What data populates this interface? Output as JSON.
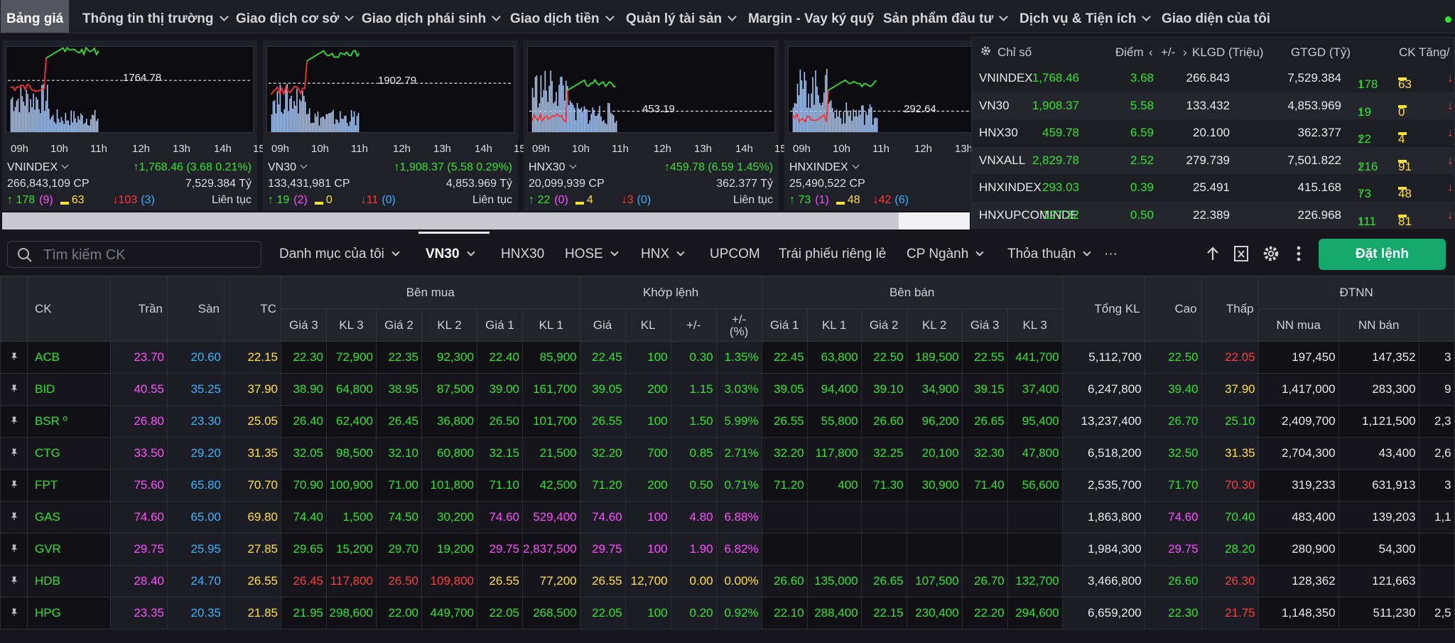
{
  "nav": {
    "items": [
      {
        "label": "Bảng giá",
        "active": true,
        "dropdown": false
      },
      {
        "label": "Thông tin thị trường",
        "dropdown": true
      },
      {
        "label": "Giao dịch cơ sở",
        "dropdown": true
      },
      {
        "label": "Giao dịch phái sinh",
        "dropdown": true
      },
      {
        "label": "Giao dịch tiền",
        "dropdown": true
      },
      {
        "label": "Quản lý tài sản",
        "dropdown": true
      },
      {
        "label": "Margin - Vay ký quỹ",
        "dropdown": false
      },
      {
        "label": "Sản phẩm đầu tư",
        "dropdown": true
      },
      {
        "label": "Dịch vụ & Tiện ích",
        "dropdown": true
      },
      {
        "label": "Giao diện của tôi",
        "dropdown": false
      }
    ]
  },
  "mini_charts": [
    {
      "name": "VNINDEX",
      "last": "1764.78",
      "change": "1,768.46 (3.68 0.21%)",
      "volume": "266,843,109 CP",
      "value": "7,529.384 Tỷ",
      "up": "178",
      "up_ceil": "(9)",
      "flat": "63",
      "down": "103",
      "down_floor": "(3)",
      "session": "Liên tục"
    },
    {
      "name": "VN30",
      "last": "1902.79",
      "change": "1,908.37 (5.58 0.29%)",
      "volume": "133,431,981 CP",
      "value": "4,853.969 Tỷ",
      "up": "19",
      "up_ceil": "(2)",
      "flat": "0",
      "down": "11",
      "down_floor": "(0)",
      "session": "Liên tục"
    },
    {
      "name": "HNX30",
      "last": "453.19",
      "change": "459.78 (6.59 1.45%)",
      "volume": "20,099,939 CP",
      "value": "362.377 Tỷ",
      "up": "22",
      "up_ceil": "(0)",
      "flat": "4",
      "down": "3",
      "down_floor": "(0)",
      "session": "Liên tục"
    },
    {
      "name": "HNXINDEX",
      "last": "292.64",
      "change": "293.03",
      "volume": "25,490,522 CP",
      "value": "",
      "up": "73",
      "up_ceil": "(1)",
      "flat": "48",
      "down": "42",
      "down_floor": "(6)",
      "session": ""
    }
  ],
  "chart_hours": [
    "09h",
    "10h",
    "11h",
    "12h",
    "13h",
    "14h",
    "15h"
  ],
  "index_panel": {
    "headers": {
      "name": "Chỉ số",
      "points": "Điểm",
      "change": "+/-",
      "volume": "KLGD (Triệu)",
      "value": "GTGD (Tỷ)",
      "breadth": "CK Tăng/"
    },
    "rows": [
      {
        "name": "VNINDEX",
        "points": "1,768.46",
        "change": "3.68",
        "volume": "266.843",
        "value": "7,529.384",
        "up": "178",
        "flat": "63"
      },
      {
        "name": "VN30",
        "points": "1,908.37",
        "change": "5.58",
        "volume": "133.432",
        "value": "4,853.969",
        "up": "19",
        "flat": "0"
      },
      {
        "name": "HNX30",
        "points": "459.78",
        "change": "6.59",
        "volume": "20.100",
        "value": "362.377",
        "up": "22",
        "flat": "4"
      },
      {
        "name": "VNXALL",
        "points": "2,829.78",
        "change": "2.52",
        "volume": "279.739",
        "value": "7,501.822",
        "up": "216",
        "flat": "91"
      },
      {
        "name": "HNXINDEX",
        "points": "293.03",
        "change": "0.39",
        "volume": "25.491",
        "value": "415.168",
        "up": "73",
        "flat": "48"
      },
      {
        "name": "HNXUPCOMINDE",
        "points": "127.32",
        "change": "0.50",
        "volume": "22.389",
        "value": "226.968",
        "up": "111",
        "flat": "81"
      }
    ]
  },
  "search": {
    "placeholder": "Tìm kiếm CK"
  },
  "tabs": [
    {
      "label": "Danh mục của tôi",
      "dropdown": true
    },
    {
      "label": "VN30",
      "dropdown": true,
      "active": true
    },
    {
      "label": "HNX30",
      "dropdown": false
    },
    {
      "label": "HOSE",
      "dropdown": true
    },
    {
      "label": "HNX",
      "dropdown": true
    },
    {
      "label": "UPCOM",
      "dropdown": false
    },
    {
      "label": "Trái phiếu riêng lẻ",
      "dropdown": false
    },
    {
      "label": "CP Ngành",
      "dropdown": true
    },
    {
      "label": "Thỏa thuận",
      "dropdown": true
    },
    {
      "label": "···",
      "dropdown": false
    }
  ],
  "order_button": "Đặt lệnh",
  "table": {
    "group_headers": {
      "buy": "Bên mua",
      "match": "Khớp lệnh",
      "sell": "Bên bán",
      "foreign": "ĐTNN"
    },
    "columns": {
      "ck": "CK",
      "ceil": "Trần",
      "floor": "Sàn",
      "ref": "TC",
      "bp3": "Giá 3",
      "bv3": "KL 3",
      "bp2": "Giá 2",
      "bv2": "KL 2",
      "bp1": "Giá 1",
      "bv1": "KL 1",
      "mp": "Giá",
      "mv": "KL",
      "chg": "+/-",
      "pct": "+/-\n(%)",
      "sp1": "Giá 1",
      "sv1": "KL 1",
      "sp2": "Giá 2",
      "sv2": "KL 2",
      "sp3": "Giá 3",
      "sv3": "KL 3",
      "total": "Tổng KL",
      "high": "Cao",
      "low": "Thấp",
      "nnbuy": "NN mua",
      "nnsell": "NN bán"
    },
    "rows": [
      {
        "sym": "ACB",
        "c": "g",
        "ceil": "23.70",
        "floor": "20.60",
        "ref": "22.15",
        "bp3": "22.30",
        "bv3": "72,900",
        "bp2": "22.35",
        "bv2": "92,300",
        "bp1": "22.40",
        "bv1": "85,900",
        "mp": "22.45",
        "mv": "100",
        "chg": "0.30",
        "pct": "1.35%",
        "sp1": "22.45",
        "sv1": "63,800",
        "sp2": "22.50",
        "sv2": "189,500",
        "sp3": "22.55",
        "sv3": "441,700",
        "total": "5,112,700",
        "high": "22.50",
        "low": "22.05",
        "nnbuy": "197,450",
        "nnsell": "147,352",
        "extra": "3",
        "cc": {
          "bp3": "g",
          "bp2": "g",
          "bp1": "g",
          "mp": "g",
          "sp1": "g",
          "sp2": "g",
          "sp3": "g",
          "high": "g",
          "low": "r"
        }
      },
      {
        "sym": "BID",
        "c": "g",
        "ceil": "40.55",
        "floor": "35.25",
        "ref": "37.90",
        "bp3": "38.90",
        "bv3": "64,800",
        "bp2": "38.95",
        "bv2": "87,500",
        "bp1": "39.00",
        "bv1": "161,700",
        "mp": "39.05",
        "mv": "200",
        "chg": "1.15",
        "pct": "3.03%",
        "sp1": "39.05",
        "sv1": "94,400",
        "sp2": "39.10",
        "sv2": "34,900",
        "sp3": "39.15",
        "sv3": "37,400",
        "total": "6,247,800",
        "high": "39.40",
        "low": "37.90",
        "nnbuy": "1,417,000",
        "nnsell": "283,300",
        "extra": "9",
        "cc": {
          "bp3": "g",
          "bp2": "g",
          "bp1": "g",
          "mp": "g",
          "sp1": "g",
          "sp2": "g",
          "sp3": "g",
          "high": "g",
          "low": "y"
        }
      },
      {
        "sym": "BSR º",
        "c": "g",
        "ceil": "26.80",
        "floor": "23.30",
        "ref": "25.05",
        "bp3": "26.40",
        "bv3": "62,400",
        "bp2": "26.45",
        "bv2": "36,800",
        "bp1": "26.50",
        "bv1": "101,700",
        "mp": "26.55",
        "mv": "100",
        "chg": "1.50",
        "pct": "5.99%",
        "sp1": "26.55",
        "sv1": "55,800",
        "sp2": "26.60",
        "sv2": "96,200",
        "sp3": "26.65",
        "sv3": "95,400",
        "total": "13,237,400",
        "high": "26.70",
        "low": "25.10",
        "nnbuy": "2,409,700",
        "nnsell": "1,121,500",
        "extra": "2,3",
        "cc": {
          "bp3": "g",
          "bp2": "g",
          "bp1": "g",
          "mp": "g",
          "sp1": "g",
          "sp2": "g",
          "sp3": "g",
          "high": "g",
          "low": "g"
        }
      },
      {
        "sym": "CTG",
        "c": "g",
        "ceil": "33.50",
        "floor": "29.20",
        "ref": "31.35",
        "bp3": "32.05",
        "bv3": "98,500",
        "bp2": "32.10",
        "bv2": "60,800",
        "bp1": "32.15",
        "bv1": "21,500",
        "mp": "32.20",
        "mv": "700",
        "chg": "0.85",
        "pct": "2.71%",
        "sp1": "32.20",
        "sv1": "117,800",
        "sp2": "32.25",
        "sv2": "20,100",
        "sp3": "32.30",
        "sv3": "47,800",
        "total": "6,518,200",
        "high": "32.50",
        "low": "31.35",
        "nnbuy": "2,704,300",
        "nnsell": "43,400",
        "extra": "2,6",
        "cc": {
          "bp3": "g",
          "bp2": "g",
          "bp1": "g",
          "mp": "g",
          "sp1": "g",
          "sp2": "g",
          "sp3": "g",
          "high": "g",
          "low": "y"
        }
      },
      {
        "sym": "FPT",
        "c": "g",
        "ceil": "75.60",
        "floor": "65.80",
        "ref": "70.70",
        "bp3": "70.90",
        "bv3": "100,900",
        "bp2": "71.00",
        "bv2": "101,800",
        "bp1": "71.10",
        "bv1": "42,500",
        "mp": "71.20",
        "mv": "200",
        "chg": "0.50",
        "pct": "0.71%",
        "sp1": "71.20",
        "sv1": "400",
        "sp2": "71.30",
        "sv2": "30,900",
        "sp3": "71.40",
        "sv3": "56,600",
        "total": "2,535,700",
        "high": "71.70",
        "low": "70.30",
        "nnbuy": "319,233",
        "nnsell": "631,913",
        "extra": "3",
        "cc": {
          "bp3": "g",
          "bp2": "g",
          "bp1": "g",
          "mp": "g",
          "sp1": "g",
          "sp2": "g",
          "sp3": "g",
          "high": "g",
          "low": "r"
        }
      },
      {
        "sym": "GAS",
        "c": "m",
        "ceil": "74.60",
        "floor": "65.00",
        "ref": "69.80",
        "bp3": "74.40",
        "bv3": "1,500",
        "bp2": "74.50",
        "bv2": "30,200",
        "bp1": "74.60",
        "bv1": "529,400",
        "mp": "74.60",
        "mv": "100",
        "chg": "4.80",
        "pct": "6.88%",
        "sp1": "",
        "sv1": "",
        "sp2": "",
        "sv2": "",
        "sp3": "",
        "sv3": "",
        "total": "1,863,800",
        "high": "74.60",
        "low": "70.40",
        "nnbuy": "483,400",
        "nnsell": "139,203",
        "extra": "1,1",
        "cc": {
          "bp3": "g",
          "bp2": "g",
          "bp1": "m",
          "mp": "m",
          "high": "m",
          "low": "g"
        }
      },
      {
        "sym": "GVR",
        "c": "m",
        "ceil": "29.75",
        "floor": "25.95",
        "ref": "27.85",
        "bp3": "29.65",
        "bv3": "15,200",
        "bp2": "29.70",
        "bv2": "19,200",
        "bp1": "29.75",
        "bv1": "2,837,500",
        "mp": "29.75",
        "mv": "100",
        "chg": "1.90",
        "pct": "6.82%",
        "sp1": "",
        "sv1": "",
        "sp2": "",
        "sv2": "",
        "sp3": "",
        "sv3": "",
        "total": "1,984,300",
        "high": "29.75",
        "low": "28.20",
        "nnbuy": "280,900",
        "nnsell": "54,300",
        "extra": "",
        "cc": {
          "bp3": "g",
          "bp2": "g",
          "bp1": "m",
          "mp": "m",
          "high": "m",
          "low": "g"
        }
      },
      {
        "sym": "HDB",
        "c": "y",
        "ceil": "28.40",
        "floor": "24.70",
        "ref": "26.55",
        "bp3": "26.45",
        "bv3": "117,800",
        "bp2": "26.50",
        "bv2": "109,800",
        "bp1": "26.55",
        "bv1": "77,200",
        "mp": "26.55",
        "mv": "12,700",
        "chg": "0.00",
        "pct": "0.00%",
        "sp1": "26.60",
        "sv1": "135,000",
        "sp2": "26.65",
        "sv2": "107,500",
        "sp3": "26.70",
        "sv3": "132,700",
        "total": "3,466,800",
        "high": "26.60",
        "low": "26.30",
        "nnbuy": "128,362",
        "nnsell": "121,663",
        "extra": "",
        "cc": {
          "bp3": "r",
          "bp2": "r",
          "bp1": "y",
          "mp": "y",
          "sp1": "g",
          "sp2": "g",
          "sp3": "g",
          "high": "g",
          "low": "r"
        }
      },
      {
        "sym": "HPG",
        "c": "g",
        "ceil": "23.35",
        "floor": "20.35",
        "ref": "21.85",
        "bp3": "21.95",
        "bv3": "298,600",
        "bp2": "22.00",
        "bv2": "449,700",
        "bp1": "22.05",
        "bv1": "268,500",
        "mp": "22.05",
        "mv": "100",
        "chg": "0.20",
        "pct": "0.92%",
        "sp1": "22.10",
        "sv1": "288,400",
        "sp2": "22.15",
        "sv2": "230,400",
        "sp3": "22.20",
        "sv3": "294,600",
        "total": "6,659,200",
        "high": "22.30",
        "low": "21.75",
        "nnbuy": "1,148,350",
        "nnsell": "511,230",
        "extra": "2,5",
        "cc": {
          "bp3": "g",
          "bp2": "g",
          "bp1": "g",
          "mp": "g",
          "sp1": "g",
          "sp2": "g",
          "sp3": "g",
          "high": "g",
          "low": "r"
        }
      }
    ]
  },
  "colors": {
    "up": "#2ee52e",
    "down": "#ff3b3b",
    "ref": "#ffe135",
    "ceil": "#ff4dff",
    "floor": "#2fb6ff",
    "accent": "#14a86c"
  }
}
